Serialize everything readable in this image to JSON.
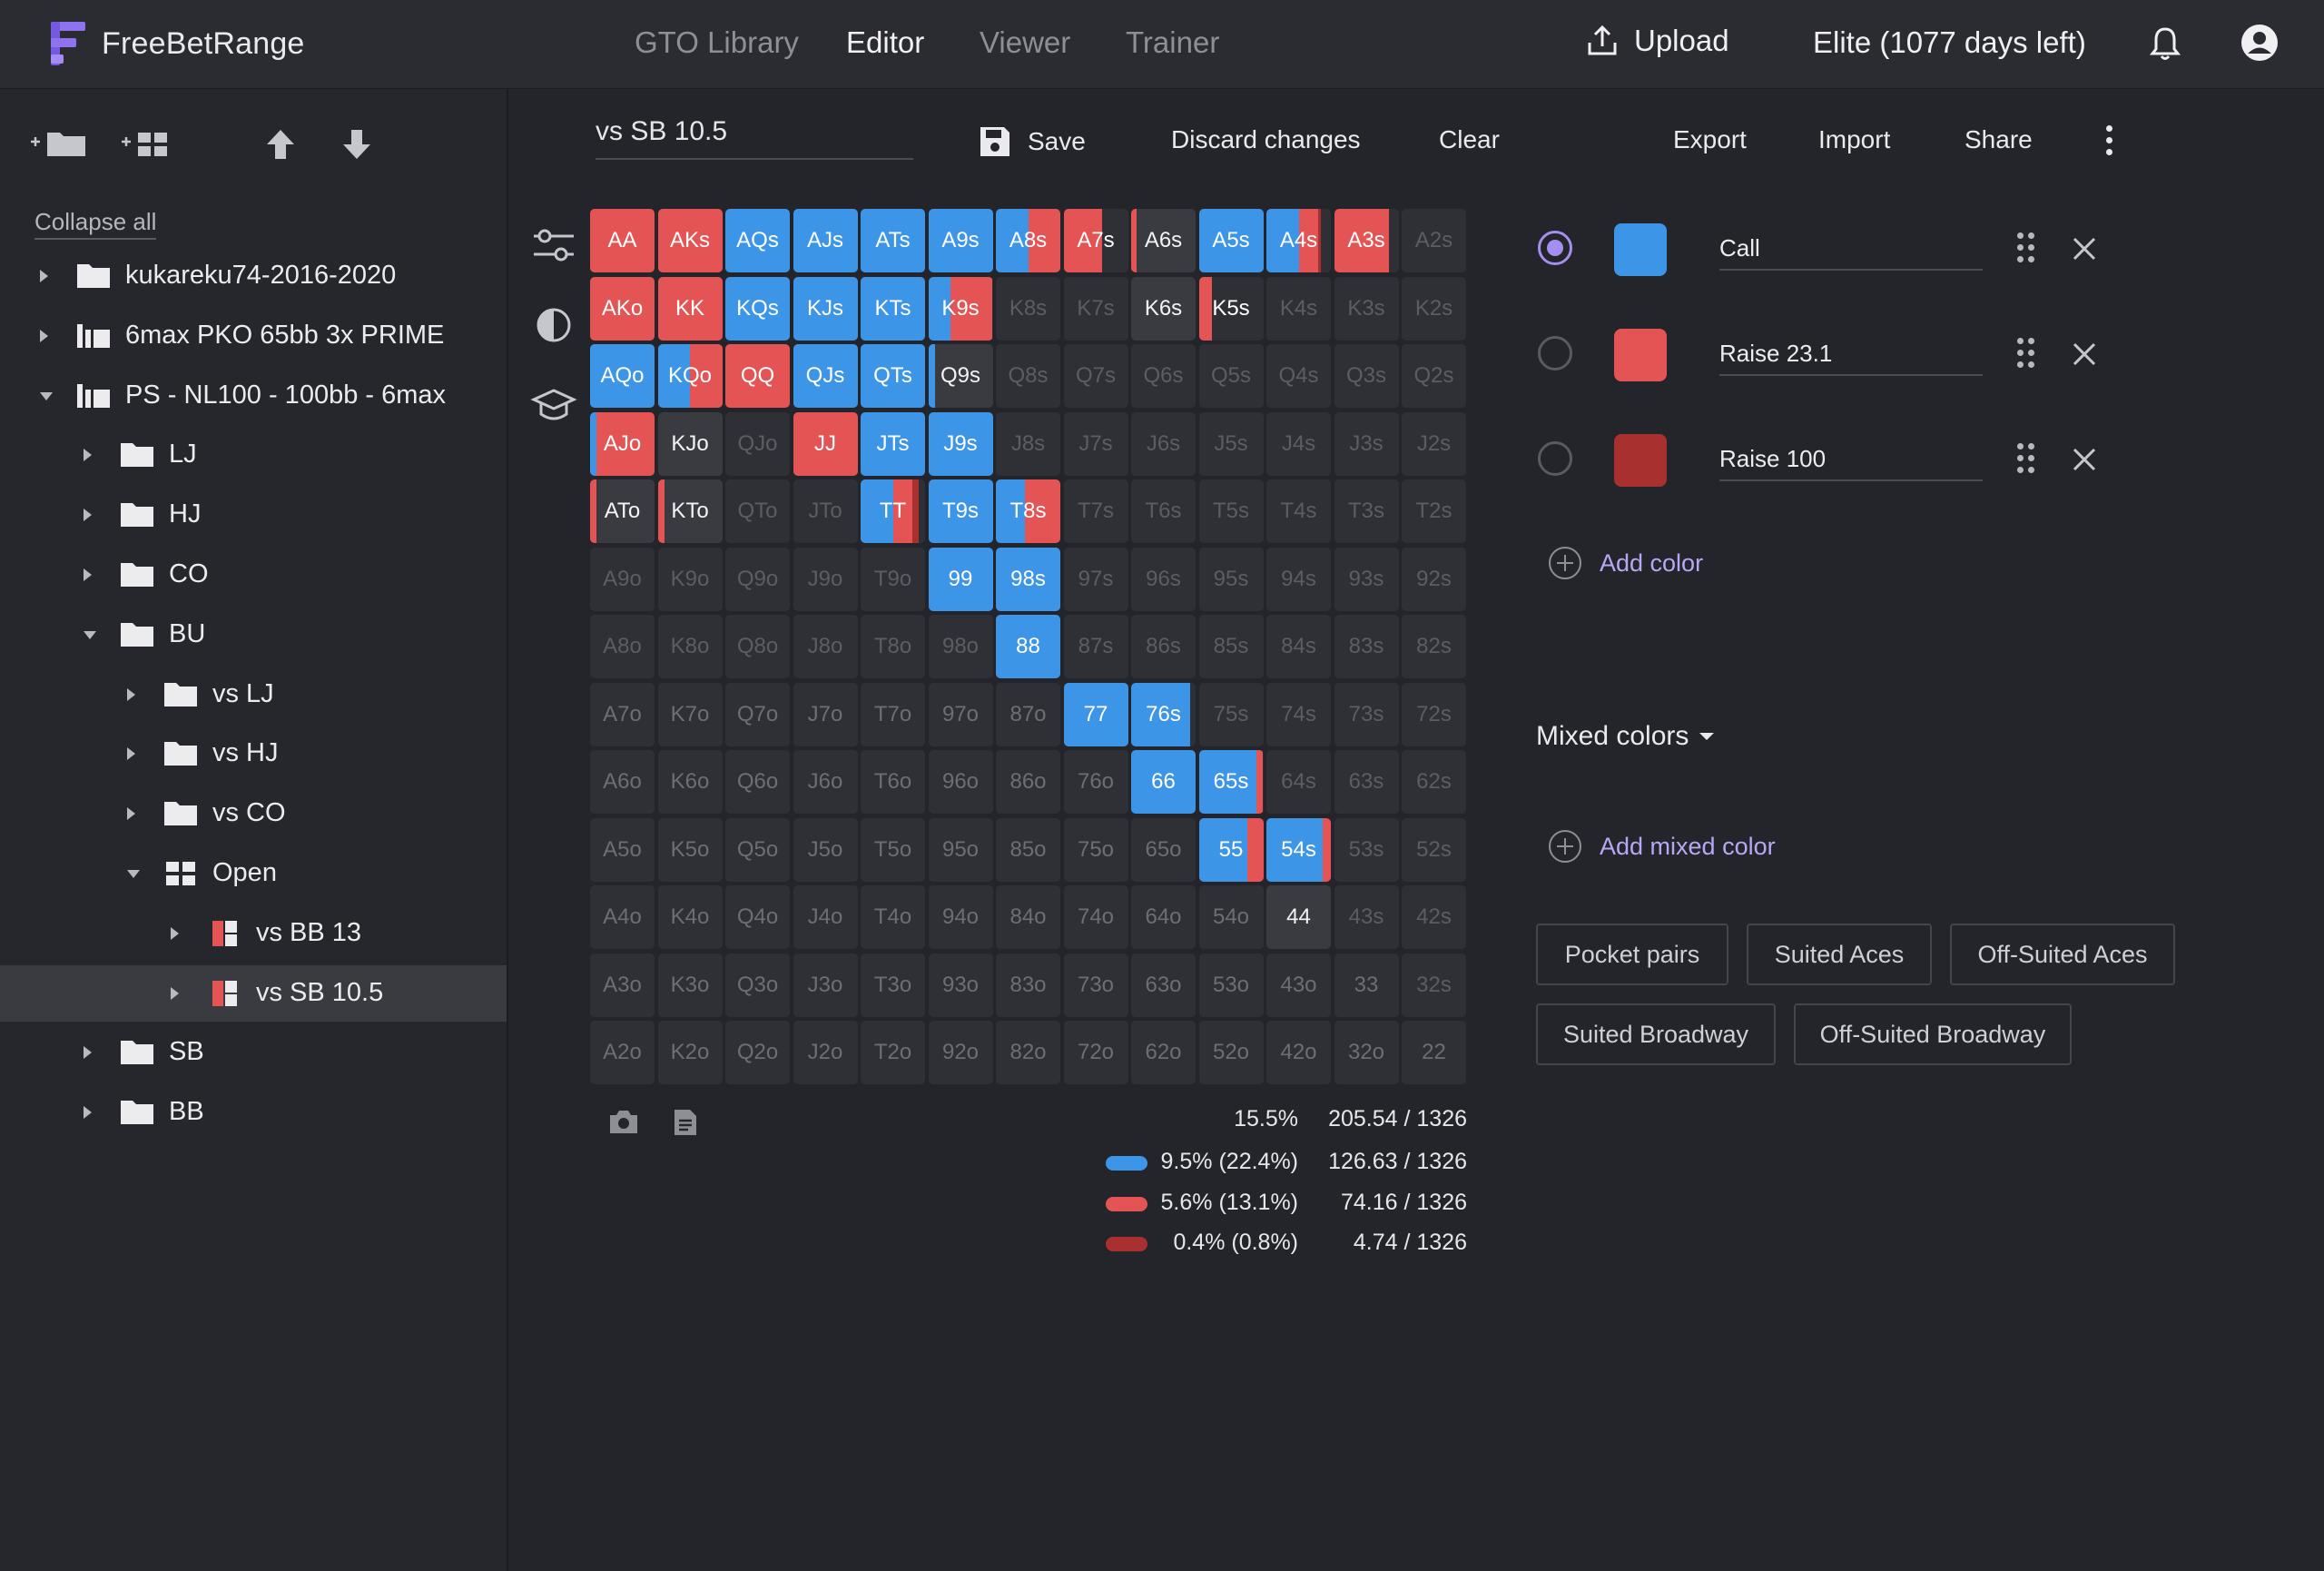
{
  "app": {
    "name": "FreeBetRange"
  },
  "nav": [
    "GTO Library",
    "Editor",
    "Viewer",
    "Trainer"
  ],
  "header": {
    "upload": "Upload",
    "plan": "Elite (1077 days left)"
  },
  "sidebar": {
    "collapse_all": "Collapse all",
    "tree": [
      {
        "label": "kukareku74-2016-2020",
        "icon": "folder-icon",
        "depth": 0,
        "caret": "right"
      },
      {
        "label": "6max PKO 65bb 3x PRIME",
        "icon": "library-icon",
        "depth": 0,
        "caret": "right"
      },
      {
        "label": "PS - NL100 - 100bb - 6max",
        "icon": "library-icon",
        "depth": 0,
        "caret": "down"
      },
      {
        "label": "LJ",
        "icon": "folder-icon",
        "depth": 1,
        "caret": "right"
      },
      {
        "label": "HJ",
        "icon": "folder-icon",
        "depth": 1,
        "caret": "right"
      },
      {
        "label": "CO",
        "icon": "folder-icon",
        "depth": 1,
        "caret": "right"
      },
      {
        "label": "BU",
        "icon": "folder-icon",
        "depth": 1,
        "caret": "down"
      },
      {
        "label": "vs LJ",
        "icon": "folder-icon",
        "depth": 2,
        "caret": "right"
      },
      {
        "label": "vs HJ",
        "icon": "folder-icon",
        "depth": 2,
        "caret": "right"
      },
      {
        "label": "vs CO",
        "icon": "folder-icon",
        "depth": 2,
        "caret": "right"
      },
      {
        "label": "Open",
        "icon": "group-icon",
        "depth": 2,
        "caret": "down"
      },
      {
        "label": "vs BB 13",
        "icon": "range-icon",
        "depth": 3,
        "caret": "right"
      },
      {
        "label": "vs SB 10.5",
        "icon": "range-icon",
        "depth": 3,
        "caret": "right",
        "selected": true
      },
      {
        "label": "SB",
        "icon": "folder-icon",
        "depth": 1,
        "caret": "right"
      },
      {
        "label": "BB",
        "icon": "folder-icon",
        "depth": 1,
        "caret": "right"
      }
    ]
  },
  "toolbar": {
    "range_name": "vs SB  10.5",
    "save": "Save",
    "discard": "Discard changes",
    "clear": "Clear",
    "export": "Export",
    "import": "Import",
    "share": "Share"
  },
  "colors": {
    "call": "#3d95e8",
    "raise": "#e55454",
    "raise100": "#a8312f",
    "mixed_light": "#7f64d8"
  },
  "ranks": [
    "A",
    "K",
    "Q",
    "J",
    "T",
    "9",
    "8",
    "7",
    "6",
    "5",
    "4",
    "3",
    "2"
  ],
  "matrix_labels": [
    [
      "AA",
      "AKs",
      "AQs",
      "AJs",
      "ATs",
      "A9s",
      "A8s",
      "A7s",
      "A6s",
      "A5s",
      "A4s",
      "A3s",
      "A2s"
    ],
    [
      "AKo",
      "KK",
      "KQs",
      "KJs",
      "KTs",
      "K9s",
      "K8s",
      "K7s",
      "K6s",
      "K5s",
      "K4s",
      "K3s",
      "K2s"
    ],
    [
      "AQo",
      "KQo",
      "QQ",
      "QJs",
      "QTs",
      "Q9s",
      "Q8s",
      "Q7s",
      "Q6s",
      "Q5s",
      "Q4s",
      "Q3s",
      "Q2s"
    ],
    [
      "AJo",
      "KJo",
      "QJo",
      "JJ",
      "JTs",
      "J9s",
      "J8s",
      "J7s",
      "J6s",
      "J5s",
      "J4s",
      "J3s",
      "J2s"
    ],
    [
      "ATo",
      "KTo",
      "QTo",
      "JTo",
      "TT",
      "T9s",
      "T8s",
      "T7s",
      "T6s",
      "T5s",
      "T4s",
      "T3s",
      "T2s"
    ],
    [
      "A9o",
      "K9o",
      "Q9o",
      "J9o",
      "T9o",
      "99",
      "98s",
      "97s",
      "96s",
      "95s",
      "94s",
      "93s",
      "92s"
    ],
    [
      "A8o",
      "K8o",
      "Q8o",
      "J8o",
      "T8o",
      "98o",
      "88",
      "87s",
      "86s",
      "85s",
      "84s",
      "83s",
      "82s"
    ],
    [
      "A7o",
      "K7o",
      "Q7o",
      "J7o",
      "T7o",
      "97o",
      "87o",
      "77",
      "76s",
      "75s",
      "74s",
      "73s",
      "72s"
    ],
    [
      "A6o",
      "K6o",
      "Q6o",
      "J6o",
      "T6o",
      "96o",
      "86o",
      "76o",
      "66",
      "65s",
      "64s",
      "63s",
      "62s"
    ],
    [
      "A5o",
      "K5o",
      "Q5o",
      "J5o",
      "T5o",
      "95o",
      "85o",
      "75o",
      "65o",
      "55",
      "54s",
      "53s",
      "52s"
    ],
    [
      "A4o",
      "K4o",
      "Q4o",
      "J4o",
      "T4o",
      "94o",
      "84o",
      "74o",
      "64o",
      "54o",
      "44",
      "43s",
      "42s"
    ],
    [
      "A3o",
      "K3o",
      "Q3o",
      "J3o",
      "T3o",
      "93o",
      "83o",
      "73o",
      "63o",
      "53o",
      "43o",
      "33",
      "32s"
    ],
    [
      "A2o",
      "K2o",
      "Q2o",
      "J2o",
      "T2o",
      "92o",
      "82o",
      "72o",
      "62o",
      "52o",
      "42o",
      "32o",
      "22"
    ]
  ],
  "hands": {
    "AA": {
      "raise": 1
    },
    "AKs": {
      "raise": 1
    },
    "AQs": {
      "call": 1
    },
    "AJs": {
      "call": 1
    },
    "ATs": {
      "call": 1
    },
    "A9s": {
      "call": 1
    },
    "A8s": {
      "call": 0.5,
      "raise": 0.5
    },
    "A7s": {
      "raise": 0.6
    },
    "A6s": {
      "raise": 0.08
    },
    "A5s": {
      "call": 1
    },
    "A4s": {
      "call": 0.5,
      "raise": 0.3,
      "raise100": 0.05
    },
    "A3s": {
      "raise": 0.85
    },
    "AKo": {
      "raise": 1
    },
    "KK": {
      "raise": 1
    },
    "KQs": {
      "call": 1
    },
    "KJs": {
      "call": 1
    },
    "KTs": {
      "call": 1
    },
    "K9s": {
      "call": 0.35,
      "raise": 0.65
    },
    "K5s": {
      "raise": 0.2
    },
    "AQo": {
      "call": 1
    },
    "KQo": {
      "call": 0.5,
      "raise": 0.5
    },
    "QQ": {
      "raise": 1
    },
    "QJs": {
      "call": 1
    },
    "QTs": {
      "call": 1
    },
    "Q9s": {
      "call": 0.1
    },
    "AJo": {
      "call": 0.1,
      "raise": 0.9
    },
    "KJo": {},
    "JJ": {
      "raise": 1
    },
    "JTs": {
      "call": 1
    },
    "J9s": {
      "call": 1
    },
    "ATo": {
      "raise": 0.1
    },
    "KTo": {
      "raise": 0.1
    },
    "TT": {
      "call": 0.5,
      "raise": 0.3,
      "raise100": 0.1
    },
    "T9s": {
      "call": 1
    },
    "T8s": {
      "call": 0.45,
      "raise": 0.55
    },
    "99": {
      "call": 1
    },
    "98s": {
      "call": 1
    },
    "88": {
      "call": 1
    },
    "77": {
      "call": 1
    },
    "76s": {
      "call": 0.92
    },
    "66": {
      "call": 1
    },
    "65s": {
      "call": 0.9,
      "raise": 0.1
    },
    "55": {
      "call": 0.75,
      "raise": 0.25
    },
    "54s": {
      "call": 0.88,
      "raise": 0.12
    }
  },
  "dark_cells": [
    "K6s",
    "KJo",
    "Q9s",
    "ATo",
    "KTo",
    "44",
    "A6s"
  ],
  "legend": {
    "total": {
      "pct": "15.5%",
      "count": "205.54 / 1326"
    },
    "rows": [
      {
        "key": "call",
        "pct": "9.5% (22.4%)",
        "count": "126.63 / 1326"
      },
      {
        "key": "raise",
        "pct": "5.6% (13.1%)",
        "count": "74.16 / 1326"
      },
      {
        "key": "raise100",
        "pct": "0.4% (0.8%)",
        "count": "4.74 / 1326"
      }
    ]
  },
  "color_panel": {
    "items": [
      {
        "name": "Call",
        "color": "#3d95e8",
        "selected": true
      },
      {
        "name": "Raise 23.1",
        "color": "#e55454",
        "selected": false
      },
      {
        "name": "Raise 100",
        "color": "#a8312f",
        "selected": false
      }
    ],
    "add_color": "Add color",
    "mixed_title": "Mixed colors",
    "add_mixed": "Add mixed color",
    "presets": [
      "Pocket pairs",
      "Suited Aces",
      "Off-Suited Aces",
      "Suited Broadway",
      "Off-Suited Broadway"
    ]
  }
}
